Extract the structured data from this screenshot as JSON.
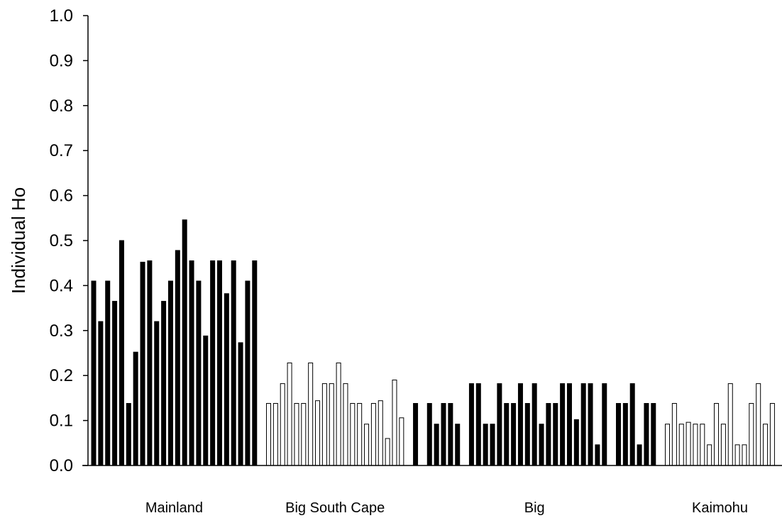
{
  "chart_data": {
    "type": "bar",
    "title": "",
    "xlabel": "",
    "ylabel": "Individual Ho",
    "ylim": [
      0,
      1.0
    ],
    "yticks": [
      "0.0",
      "0.1",
      "0.2",
      "0.3",
      "0.4",
      "0.5",
      "0.6",
      "0.7",
      "0.8",
      "0.9",
      "1.0"
    ],
    "grid": false,
    "legend": "none",
    "series": [
      {
        "group": "Mainland",
        "fill": "black",
        "values": [
          0.41,
          0.32,
          0.41,
          0.365,
          0.5,
          0.138,
          0.252,
          0.452,
          0.455,
          0.32,
          0.365,
          0.41,
          0.478,
          0.546,
          0.455,
          0.41,
          0.288,
          0.455,
          0.455,
          0.382,
          0.455,
          0.273,
          0.41,
          0.455
        ]
      },
      {
        "group": "Big South Cape",
        "fill": "white",
        "values": [
          0.138,
          0.138,
          0.182,
          0.228,
          0.138,
          0.138,
          0.228,
          0.144,
          0.182,
          0.182,
          0.228,
          0.182,
          0.138,
          0.138,
          0.092,
          0.138,
          0.144,
          0.06,
          0.19,
          0.106
        ]
      },
      {
        "group": "Big",
        "fill": "black",
        "values": [
          0.138,
          null,
          0.138,
          0.092,
          0.138,
          0.138,
          0.092,
          null,
          0.182,
          0.182,
          0.092,
          0.092,
          0.182,
          0.138,
          0.138,
          0.182,
          0.138,
          0.182,
          0.092,
          0.138,
          0.138,
          0.182,
          0.182,
          0.102,
          0.182,
          0.182,
          0.046,
          0.182,
          null,
          0.138,
          0.138,
          0.182,
          0.046,
          0.138,
          0.138
        ]
      },
      {
        "group": "Kaimohu",
        "fill": "white",
        "values": [
          0.092,
          0.138,
          0.092,
          0.096,
          0.092,
          0.092,
          0.046,
          0.138,
          0.092,
          0.182,
          0.046,
          0.046,
          0.138,
          0.182,
          0.092,
          0.138
        ]
      }
    ]
  },
  "colors": {
    "bar_dark": "#000000",
    "bar_light": "#ffffff",
    "outline": "#000000",
    "background": "#ffffff"
  }
}
